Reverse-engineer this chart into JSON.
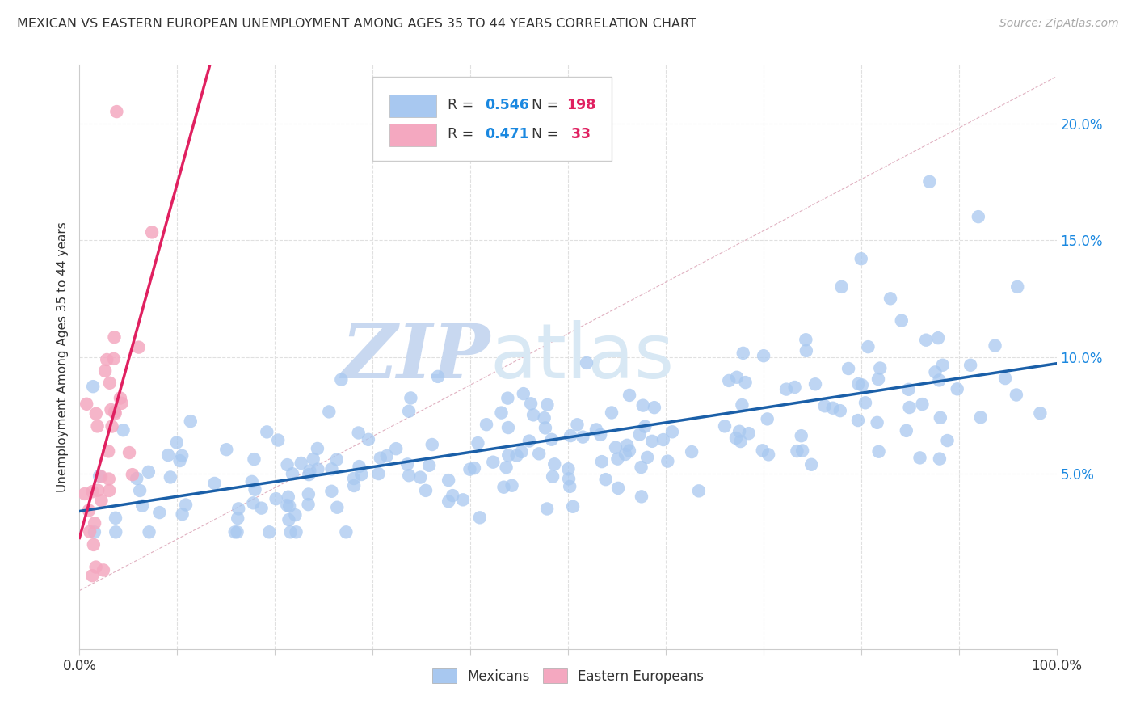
{
  "title": "MEXICAN VS EASTERN EUROPEAN UNEMPLOYMENT AMONG AGES 35 TO 44 YEARS CORRELATION CHART",
  "source": "Source: ZipAtlas.com",
  "ylabel": "Unemployment Among Ages 35 to 44 years",
  "xlim": [
    0.0,
    1.0
  ],
  "ylim": [
    -0.025,
    0.225
  ],
  "x_ticks": [
    0.0,
    0.1,
    0.2,
    0.3,
    0.4,
    0.5,
    0.6,
    0.7,
    0.8,
    0.9,
    1.0
  ],
  "y_ticks": [
    0.05,
    0.1,
    0.15,
    0.2
  ],
  "y_tick_labels": [
    "5.0%",
    "10.0%",
    "15.0%",
    "20.0%"
  ],
  "x_tick_labels_show": [
    "0.0%",
    "100.0%"
  ],
  "mexicans_R": 0.546,
  "mexicans_N": 198,
  "eastern_R": 0.471,
  "eastern_N": 33,
  "scatter_color_mexicans": "#a8c8f0",
  "scatter_color_eastern": "#f4a8c0",
  "line_color_mexicans": "#1a5fa8",
  "line_color_eastern": "#e02060",
  "r_value_color": "#1a88e0",
  "n_value_color": "#e02060",
  "legend_mexicans_color": "#a8c8f0",
  "legend_eastern_color": "#f4a8c0",
  "watermark_zip": "ZIP",
  "watermark_atlas": "atlas",
  "watermark_color": "#c8d8f0",
  "background_color": "#ffffff",
  "grid_color": "#e0e0e0",
  "diag_color": "#e0b0c0"
}
